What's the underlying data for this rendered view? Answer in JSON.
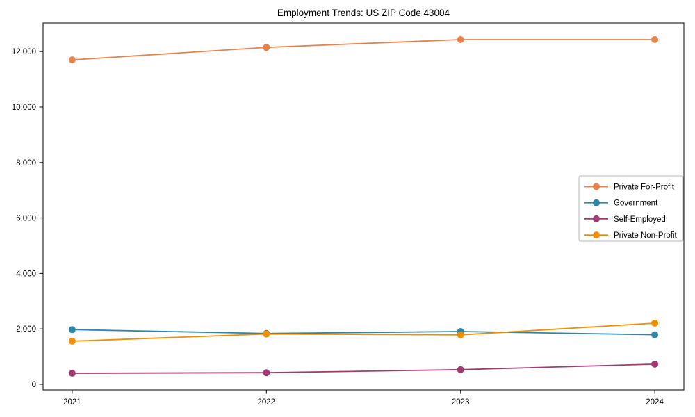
{
  "chart_data": {
    "type": "line",
    "title": "Employment Trends: US ZIP Code 43004",
    "xlabel": "",
    "ylabel": "",
    "categories": [
      "2021",
      "2022",
      "2023",
      "2024"
    ],
    "x": [
      2021,
      2022,
      2023,
      2024
    ],
    "series": [
      {
        "name": "Private For-Profit",
        "color": "#E8824D",
        "values": [
          11700,
          12150,
          12430,
          12430
        ]
      },
      {
        "name": "Government",
        "color": "#2E86AB",
        "values": [
          1975,
          1835,
          1905,
          1790
        ]
      },
      {
        "name": "Self-Employed",
        "color": "#A23B72",
        "values": [
          400,
          420,
          530,
          730
        ]
      },
      {
        "name": "Private Non-Profit",
        "color": "#F18F01",
        "values": [
          1555,
          1815,
          1785,
          2205
        ]
      }
    ],
    "yticks": [
      0,
      2000,
      4000,
      6000,
      8000,
      10000,
      12000
    ],
    "ytick_labels": [
      "0",
      "2,000",
      "4,000",
      "6,000",
      "8,000",
      "10,000",
      "12,000"
    ],
    "xlim": [
      2020.85,
      2024.15
    ],
    "ylim": [
      -201,
      13032
    ],
    "grid": false,
    "legend_position": "center right"
  }
}
